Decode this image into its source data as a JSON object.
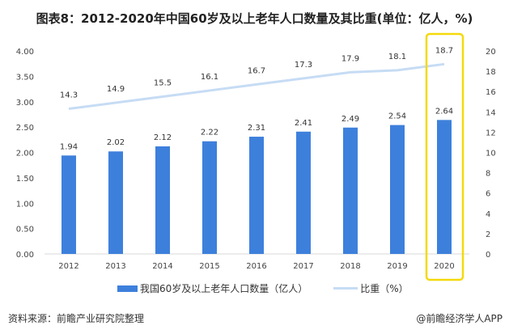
{
  "title": "图表8：2012-2020年中国60岁及以上老年人口数量及其比重(单位：亿人，%)",
  "source": "资料来源：前瞻产业研究院整理",
  "brand": "@前瞻经济学人APP",
  "colors": {
    "bar": "#3d80dc",
    "line": "#c6dcf4",
    "highlight": "#f5d90a"
  },
  "chart_data": {
    "type": "bar+line",
    "categories": [
      "2012",
      "2013",
      "2014",
      "2015",
      "2016",
      "2017",
      "2018",
      "2019",
      "2020"
    ],
    "series": [
      {
        "name": "我国60岁及以上老年人口数量（亿人）",
        "type": "bar",
        "axis": "left",
        "values": [
          1.94,
          2.02,
          2.12,
          2.22,
          2.31,
          2.41,
          2.49,
          2.54,
          2.64
        ],
        "labels": [
          "1.94",
          "2.02",
          "2.12",
          "2.22",
          "2.31",
          "2.41",
          "2.49",
          "2.54",
          "2.64"
        ]
      },
      {
        "name": "比重（%）",
        "type": "line",
        "axis": "right",
        "values": [
          14.3,
          14.9,
          15.5,
          16.1,
          16.7,
          17.3,
          17.9,
          18.1,
          18.7
        ],
        "labels": [
          "14.3",
          "14.9",
          "15.5",
          "16.1",
          "16.7",
          "17.3",
          "17.9",
          "18.1",
          "18.7"
        ]
      }
    ],
    "left_axis": {
      "range": [
        0,
        4
      ],
      "ticks": [
        "0.00",
        "0.50",
        "1.00",
        "1.50",
        "2.00",
        "2.50",
        "3.00",
        "3.50",
        "4.00"
      ]
    },
    "right_axis": {
      "range": [
        0,
        20
      ],
      "ticks": [
        "0",
        "2",
        "4",
        "6",
        "8",
        "10",
        "12",
        "14",
        "16",
        "18",
        "20"
      ]
    },
    "highlight": "2020",
    "grid": false,
    "legend": "bottom"
  }
}
